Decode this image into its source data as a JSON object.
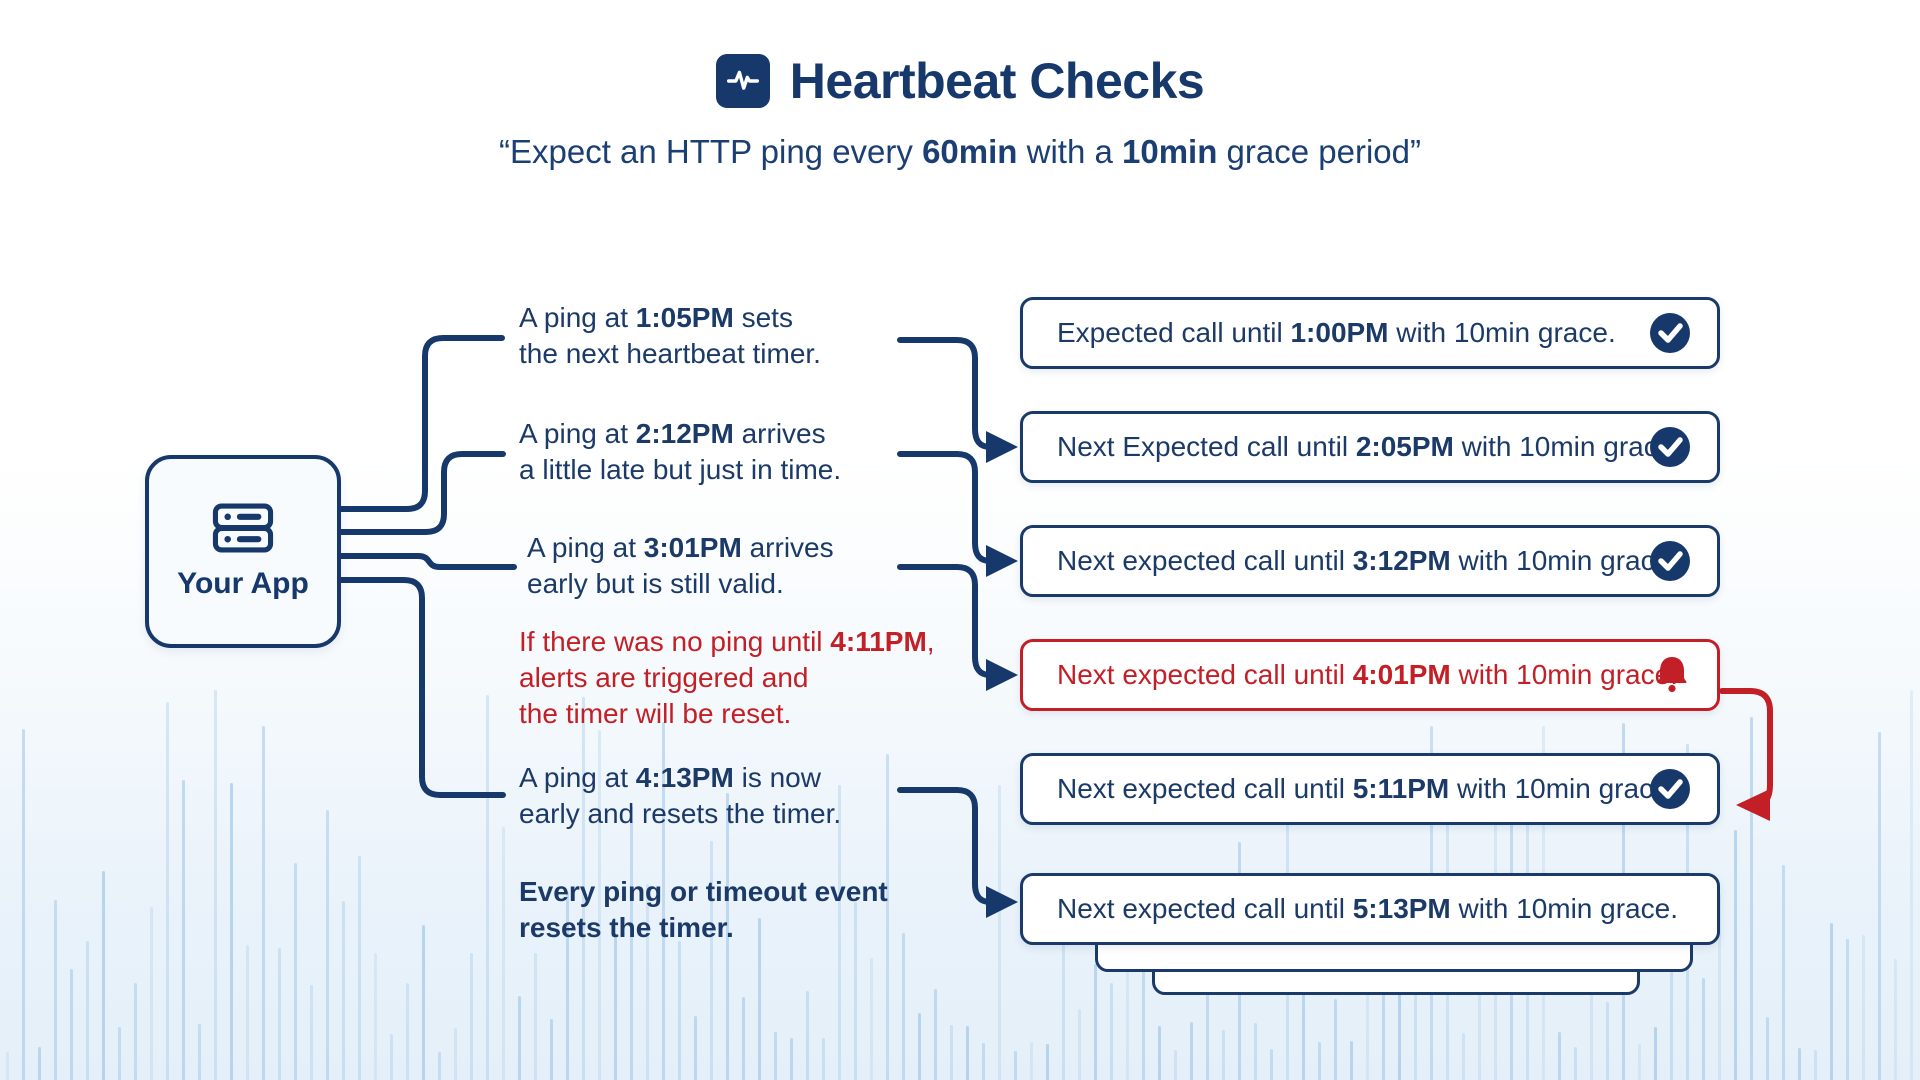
{
  "header": {
    "title": "Heartbeat Checks",
    "subtitle": {
      "pre": "“Expect an HTTP ping every ",
      "bold1": "60min",
      "mid": " with a ",
      "bold2": "10min",
      "post": " grace period”"
    }
  },
  "app_node": {
    "label": "Your App"
  },
  "annotations": [
    {
      "l1_pre": "A ping at ",
      "l1_bold": "1:05PM",
      "l1_post": " sets",
      "l2": "the next heartbeat timer."
    },
    {
      "l1_pre": "A ping at ",
      "l1_bold": "2:12PM",
      "l1_post": " arrives",
      "l2": "a little late but just in time."
    },
    {
      "l1_pre": "A ping at ",
      "l1_bold": "3:01PM",
      "l1_post": " arrives",
      "l2": "early but is still valid."
    },
    {
      "l1_pre": "If there was no ping until ",
      "l1_bold": "4:11PM",
      "l1_post": ",",
      "l2": "alerts are triggered and",
      "l3": "the timer will be reset."
    },
    {
      "l1_pre": "A ping at ",
      "l1_bold": "4:13PM",
      "l1_post": " is now",
      "l2": "early and resets the timer."
    },
    {
      "l1_pre": "Every ping or timeout event",
      "l2": "resets the timer."
    }
  ],
  "boxes": [
    {
      "pre": "Expected call until ",
      "time": "1:00PM",
      "post": " with 10min grace.",
      "icon": "check-circle-icon",
      "variant": "normal"
    },
    {
      "pre": "Next Expected call until ",
      "time": "2:05PM",
      "post": " with 10min grace.",
      "icon": "check-circle-icon",
      "variant": "normal"
    },
    {
      "pre": "Next expected call until ",
      "time": "3:12PM",
      "post": " with 10min grace.",
      "icon": "check-circle-icon",
      "variant": "normal"
    },
    {
      "pre": "Next expected call until ",
      "time": "4:01PM",
      "post": " with 10min grace.",
      "icon": "bell-icon",
      "variant": "alert"
    },
    {
      "pre": "Next expected call until ",
      "time": "5:11PM",
      "post": " with 10min grace.",
      "icon": "check-circle-icon",
      "variant": "normal"
    },
    {
      "pre": "Next expected call until ",
      "time": "5:13PM",
      "post": " with 10min grace.",
      "icon": "none",
      "variant": "normal"
    }
  ],
  "icons": {
    "title": "activity-pulse-icon",
    "app": "server-icon",
    "success": "check-circle-icon",
    "alert": "bell-icon"
  },
  "colors": {
    "navy": "#16386B",
    "alert_red": "#C22026",
    "box_border": "#1A3A6A",
    "app_box_bg": "#F8FBFE",
    "waveform_bar": "#9CC4E8"
  }
}
